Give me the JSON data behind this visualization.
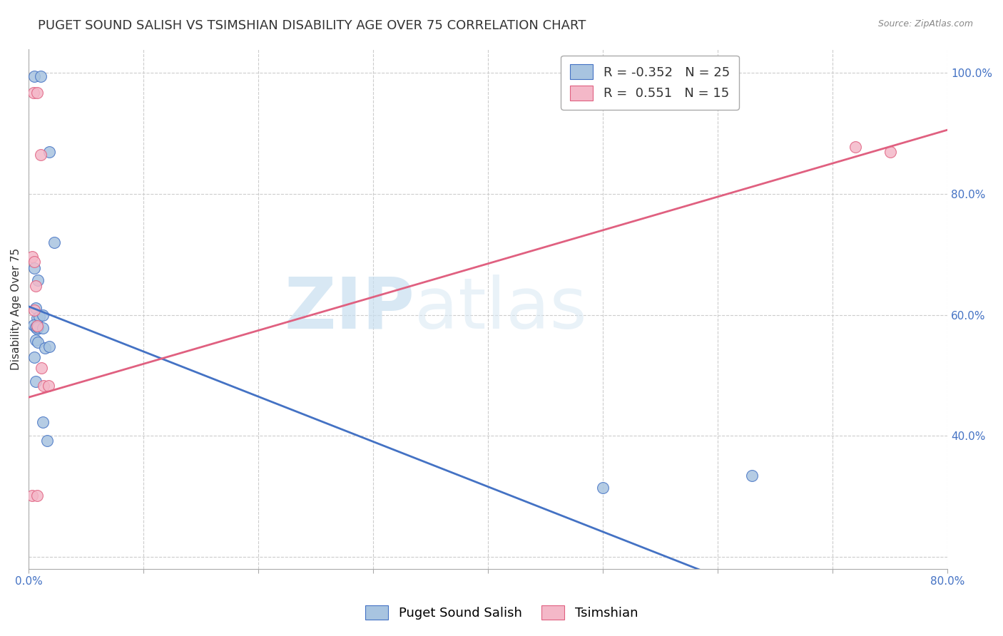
{
  "title": "PUGET SOUND SALISH VS TSIMSHIAN DISABILITY AGE OVER 75 CORRELATION CHART",
  "source": "Source: ZipAtlas.com",
  "ylabel": "Disability Age Over 75",
  "xlim": [
    0.0,
    0.8
  ],
  "ylim": [
    0.18,
    1.04
  ],
  "blue_label": "Puget Sound Salish",
  "pink_label": "Tsimshian",
  "blue_R": -0.352,
  "blue_N": 25,
  "pink_R": 0.551,
  "pink_N": 15,
  "blue_color": "#a8c4e0",
  "pink_color": "#f4b8c8",
  "blue_line_color": "#4472c4",
  "pink_line_color": "#e06080",
  "blue_line": [
    [
      0.0,
      0.614
    ],
    [
      0.8,
      0.018
    ]
  ],
  "pink_line": [
    [
      0.0,
      0.464
    ],
    [
      0.8,
      0.906
    ]
  ],
  "blue_scatter": [
    [
      0.005,
      0.995
    ],
    [
      0.01,
      0.995
    ],
    [
      0.018,
      0.87
    ],
    [
      0.022,
      0.72
    ],
    [
      0.005,
      0.678
    ],
    [
      0.008,
      0.658
    ],
    [
      0.006,
      0.612
    ],
    [
      0.007,
      0.595
    ],
    [
      0.009,
      0.597
    ],
    [
      0.012,
      0.6
    ],
    [
      0.004,
      0.583
    ],
    [
      0.006,
      0.58
    ],
    [
      0.007,
      0.577
    ],
    [
      0.008,
      0.58
    ],
    [
      0.012,
      0.578
    ],
    [
      0.006,
      0.558
    ],
    [
      0.008,
      0.555
    ],
    [
      0.014,
      0.545
    ],
    [
      0.018,
      0.548
    ],
    [
      0.005,
      0.53
    ],
    [
      0.006,
      0.49
    ],
    [
      0.012,
      0.423
    ],
    [
      0.016,
      0.392
    ],
    [
      0.5,
      0.315
    ],
    [
      0.63,
      0.335
    ]
  ],
  "pink_scatter": [
    [
      0.004,
      0.968
    ],
    [
      0.007,
      0.967
    ],
    [
      0.01,
      0.865
    ],
    [
      0.003,
      0.696
    ],
    [
      0.005,
      0.688
    ],
    [
      0.006,
      0.648
    ],
    [
      0.005,
      0.608
    ],
    [
      0.007,
      0.582
    ],
    [
      0.011,
      0.513
    ],
    [
      0.013,
      0.483
    ],
    [
      0.017,
      0.483
    ],
    [
      0.003,
      0.302
    ],
    [
      0.007,
      0.302
    ],
    [
      0.72,
      0.878
    ],
    [
      0.75,
      0.87
    ]
  ],
  "watermark_zip": "ZIP",
  "watermark_atlas": "atlas",
  "background_color": "#ffffff",
  "grid_color": "#cccccc",
  "title_fontsize": 13,
  "axis_label_fontsize": 11,
  "tick_fontsize": 11,
  "legend_fontsize": 13
}
